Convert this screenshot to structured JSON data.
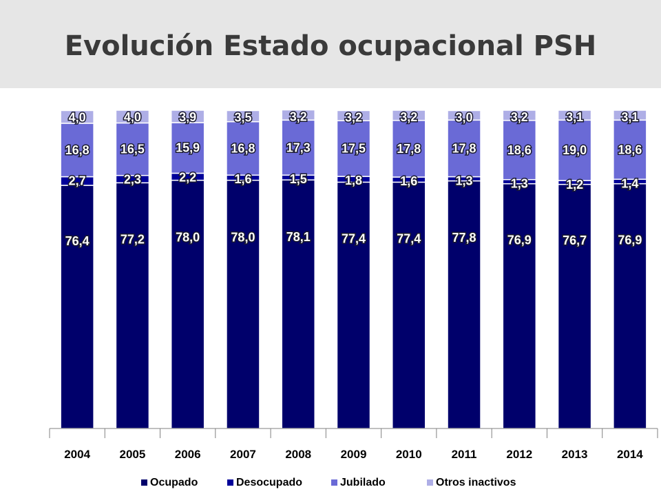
{
  "title": "Evolución Estado ocupacional PSH",
  "chart_data": {
    "type": "bar",
    "stacked": true,
    "title": "",
    "xlabel": "",
    "ylabel": "",
    "ylim": [
      0,
      100
    ],
    "grid": false,
    "legend_position": "bottom",
    "categories": [
      "2004",
      "2005",
      "2006",
      "2007",
      "2008",
      "2009",
      "2010",
      "2011",
      "2012",
      "2013",
      "2014"
    ],
    "series": [
      {
        "name": "Ocupado",
        "color": "#00006b",
        "values": [
          76.4,
          77.2,
          78.0,
          78.0,
          78.1,
          77.4,
          77.4,
          77.8,
          76.9,
          76.7,
          76.9
        ],
        "labels": [
          "76,4",
          "77,2",
          "78,0",
          "78,0",
          "78,1",
          "77,4",
          "77,4",
          "77,8",
          "76,9",
          "76,7",
          "76,9"
        ]
      },
      {
        "name": "Desocupado",
        "color": "#000099",
        "values": [
          2.7,
          2.3,
          2.2,
          1.6,
          1.5,
          1.8,
          1.6,
          1.3,
          1.3,
          1.2,
          1.4
        ],
        "labels": [
          "2,7",
          "2,3",
          "2,2",
          "1,6",
          "1,5",
          "1,8",
          "1,6",
          "1,3",
          "1,3",
          "1,2",
          "1,4"
        ]
      },
      {
        "name": "Jubilado",
        "color": "#6a6ad6",
        "values": [
          16.8,
          16.5,
          15.9,
          16.8,
          17.3,
          17.5,
          17.8,
          17.8,
          18.6,
          19.0,
          18.6
        ],
        "labels": [
          "16,8",
          "16,5",
          "15,9",
          "16,8",
          "17,3",
          "17,5",
          "17,8",
          "17,8",
          "18,6",
          "19,0",
          "18,6"
        ]
      },
      {
        "name": "Otros inactivos",
        "color": "#aeaee6",
        "values": [
          4.0,
          4.0,
          3.9,
          3.5,
          3.2,
          3.2,
          3.2,
          3.0,
          3.2,
          3.1,
          3.1
        ],
        "labels": [
          "4,0",
          "4,0",
          "3,9",
          "3,5",
          "3,2",
          "3,2",
          "3,2",
          "3,0",
          "3,2",
          "3,1",
          "3,1"
        ]
      }
    ]
  }
}
